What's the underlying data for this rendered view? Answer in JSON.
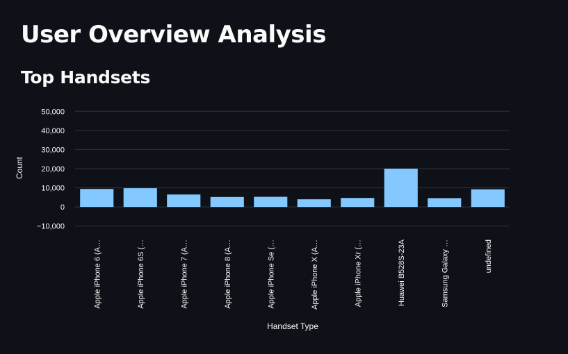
{
  "page": {
    "title": "User Overview Analysis",
    "section_title": "Top Handsets"
  },
  "colors": {
    "background": "#0e1117",
    "bar": "#83c9ff",
    "grid": "#31333f",
    "text": "#fafafa"
  },
  "chart_data": {
    "type": "bar",
    "title": "",
    "xlabel": "Handset Type",
    "ylabel": "Count",
    "ylim": [
      -13000,
      53000
    ],
    "yticks": [
      -10000,
      0,
      10000,
      20000,
      30000,
      40000,
      50000
    ],
    "ytick_labels": [
      "−10,000",
      "0",
      "10,000",
      "20,000",
      "30,000",
      "40,000",
      "50,000"
    ],
    "grid": true,
    "categories": [
      "Apple iPhone 6 (A…",
      "Apple iPhone 6S (…",
      "Apple iPhone 7 (A…",
      "Apple iPhone 8 (A…",
      "Apple iPhone Se (…",
      "Apple iPhone X (A…",
      "Apple iPhone Xr (…",
      "Huawei B528S-23A",
      "Samsung Galaxy …",
      "undefined"
    ],
    "values": [
      9400,
      9800,
      6500,
      5200,
      5300,
      4000,
      4700,
      20000,
      4600,
      9200
    ]
  }
}
